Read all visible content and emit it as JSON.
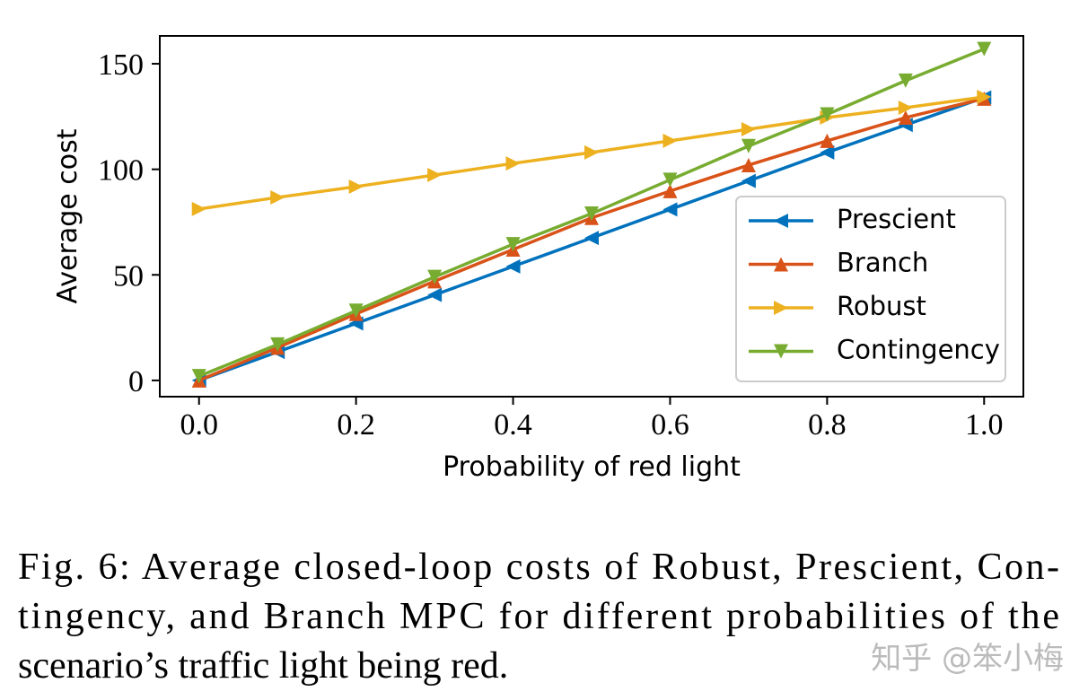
{
  "chart_data": {
    "type": "line",
    "x": [
      0.0,
      0.1,
      0.2,
      0.3,
      0.4,
      0.5,
      0.6,
      0.7,
      0.8,
      0.9,
      1.0
    ],
    "series": [
      {
        "name": "Prescient",
        "color": "#0072bd",
        "marker": "<",
        "values": [
          0,
          13.5,
          27,
          40.5,
          54,
          67.5,
          81,
          94.5,
          108,
          121,
          134
        ]
      },
      {
        "name": "Branch",
        "color": "#d95319",
        "marker": "^",
        "values": [
          0,
          15.5,
          31.5,
          47,
          62,
          77,
          89.7,
          102,
          113.5,
          124.5,
          133.5
        ]
      },
      {
        "name": "Robust",
        "color": "#edb120",
        "marker": ">",
        "values": [
          81.2,
          86.7,
          91.8,
          97.3,
          102.8,
          108,
          113.5,
          119,
          124.5,
          129.2,
          134.3
        ]
      },
      {
        "name": "Contingency",
        "color": "#77ac30",
        "marker": "v",
        "values": [
          2,
          17,
          33,
          49,
          64.5,
          79,
          95,
          111,
          126,
          142,
          157
        ]
      }
    ],
    "xlabel": "Probability of red light",
    "ylabel": "Average cost",
    "xlim": [
      -0.05,
      1.05
    ],
    "ylim": [
      -7.7,
      163.2
    ],
    "xticks": [
      {
        "value": 0,
        "label": "0.0"
      },
      {
        "value": 0.2,
        "label": "0.2"
      },
      {
        "value": 0.4,
        "label": "0.4"
      },
      {
        "value": 0.6,
        "label": "0.6"
      },
      {
        "value": 0.8,
        "label": "0.8"
      },
      {
        "value": 1,
        "label": "1.0"
      }
    ],
    "yticks": [
      0,
      50,
      100,
      150
    ],
    "legend": "lower right",
    "caption": [
      "Fig. 6: Average closed-loop costs of Robust, Prescient, Con-",
      "tingency, and Branch MPC for different probabilities of the",
      "scenario’s traffic light being red."
    ],
    "watermark": "知乎 @笨小梅"
  }
}
